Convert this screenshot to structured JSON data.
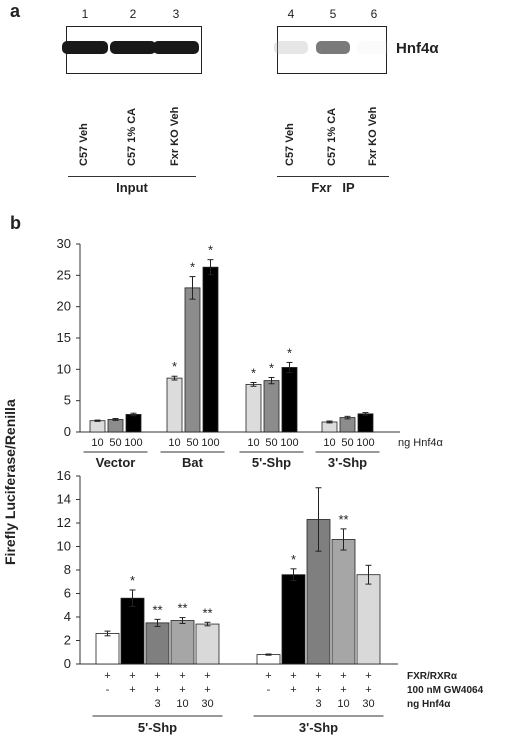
{
  "panel_a": {
    "letter": "a",
    "lane_numbers": [
      "1",
      "2",
      "3",
      "4",
      "5",
      "6"
    ],
    "band_label": "Hnf4α",
    "lane_labels": [
      "C57 Veh",
      "C57 1% CA",
      "Fxr KO Veh",
      "C57 Veh",
      "C57 1% CA",
      "Fxr KO Veh"
    ],
    "group_labels": [
      "Input",
      "Fxr   IP"
    ],
    "band_intensity": [
      1.0,
      1.0,
      1.0,
      0.3,
      0.75,
      0.05
    ]
  },
  "panel_b": {
    "letter": "b",
    "shared_ylabel": "Firefly Luciferase/Renilla"
  },
  "chart_data": [
    {
      "type": "bar",
      "ylim": [
        0,
        30
      ],
      "yticks": [
        0,
        5,
        10,
        15,
        20,
        25,
        30
      ],
      "groups": [
        "Vector",
        "Bat",
        "5'-Shp",
        "3'-Shp"
      ],
      "dose_labels": [
        "10",
        "50",
        "100"
      ],
      "axis_note": "ng Hnf4α",
      "series": [
        {
          "values": [
            1.8,
            8.6,
            7.6,
            1.6
          ],
          "errors": [
            0.1,
            0.3,
            0.3,
            0.15
          ],
          "color": "#dcdcdc",
          "sig": [
            "",
            "*",
            "*",
            ""
          ]
        },
        {
          "values": [
            2.0,
            23.0,
            8.2,
            2.3
          ],
          "errors": [
            0.15,
            1.8,
            0.5,
            0.2
          ],
          "color": "#8c8c8c",
          "sig": [
            "",
            "*",
            "*",
            ""
          ]
        },
        {
          "values": [
            2.8,
            26.3,
            10.3,
            2.9
          ],
          "errors": [
            0.2,
            1.2,
            0.8,
            0.2
          ],
          "color": "#000000",
          "sig": [
            "",
            "*",
            "*",
            ""
          ]
        }
      ]
    },
    {
      "type": "bar",
      "ylim": [
        0,
        16
      ],
      "yticks": [
        0,
        2,
        4,
        6,
        8,
        10,
        12,
        14,
        16
      ],
      "groups": [
        "5'-Shp",
        "3'-Shp"
      ],
      "bars": [
        {
          "group": "5'-Shp",
          "value": 2.6,
          "error": 0.2,
          "color": "#ffffff",
          "sig": ""
        },
        {
          "group": "5'-Shp",
          "value": 5.6,
          "error": 0.7,
          "color": "#000000",
          "sig": "*"
        },
        {
          "group": "5'-Shp",
          "value": 3.5,
          "error": 0.3,
          "color": "#7f7f7f",
          "sig": "**"
        },
        {
          "group": "5'-Shp",
          "value": 3.7,
          "error": 0.25,
          "color": "#a6a6a6",
          "sig": "**"
        },
        {
          "group": "5'-Shp",
          "value": 3.4,
          "error": 0.15,
          "color": "#d9d9d9",
          "sig": "**"
        },
        {
          "group": "3'-Shp",
          "value": 0.8,
          "error": 0.05,
          "color": "#ffffff",
          "sig": ""
        },
        {
          "group": "3'-Shp",
          "value": 7.6,
          "error": 0.5,
          "color": "#000000",
          "sig": "*"
        },
        {
          "group": "3'-Shp",
          "value": 12.3,
          "error": 2.7,
          "color": "#7f7f7f",
          "sig": ""
        },
        {
          "group": "3'-Shp",
          "value": 10.6,
          "error": 0.9,
          "color": "#a6a6a6",
          "sig": "**"
        },
        {
          "group": "3'-Shp",
          "value": 7.6,
          "error": 0.8,
          "color": "#d9d9d9",
          "sig": ""
        }
      ],
      "condition_rows": [
        {
          "label": "FXR/RXRα",
          "cells": [
            "+",
            "+",
            "+",
            "+",
            "+",
            "+",
            "+",
            "+",
            "+",
            "+"
          ]
        },
        {
          "label": "100 nM GW4064",
          "cells": [
            "-",
            "+",
            "+",
            "+",
            "+",
            "-",
            "+",
            "+",
            "+",
            "+"
          ]
        },
        {
          "label": "ng Hnf4α",
          "cells": [
            "",
            "",
            "3",
            "10",
            "30",
            "",
            "",
            "3",
            "10",
            "30"
          ]
        }
      ]
    }
  ]
}
